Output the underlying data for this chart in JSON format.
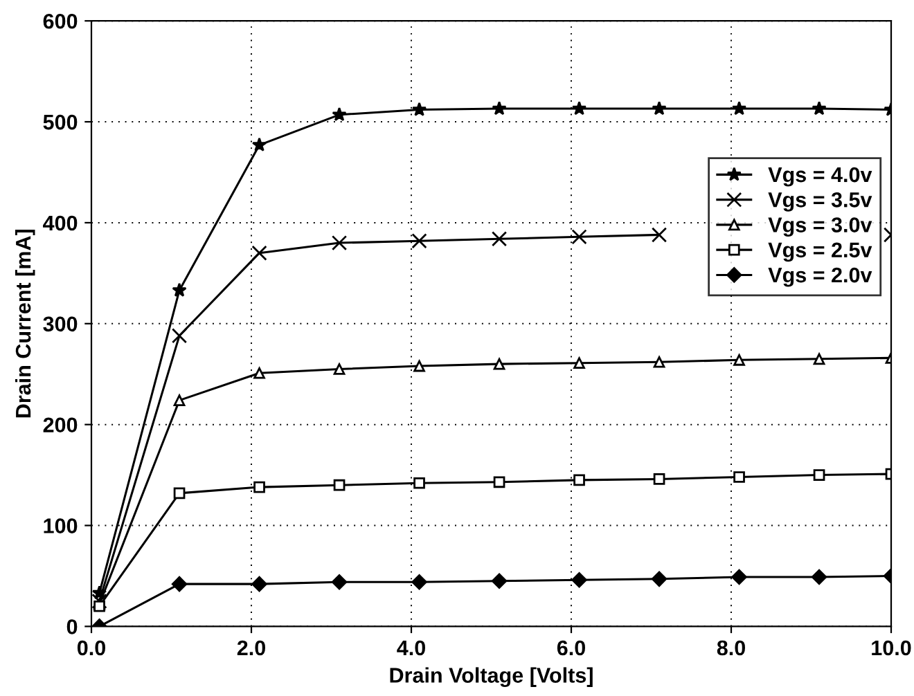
{
  "chart_data": {
    "type": "line",
    "xlabel": "Drain Voltage [Volts]",
    "ylabel": "Drain Current [mA]",
    "x": [
      0.1,
      1.1,
      2.1,
      3.1,
      4.1,
      5.1,
      6.1,
      7.1,
      8.1,
      9.1,
      10.0
    ],
    "xlim": [
      0,
      10
    ],
    "xticks": [
      {
        "value": 0,
        "label": "0.0"
      },
      {
        "value": 2,
        "label": "2.0"
      },
      {
        "value": 4,
        "label": "4.0"
      },
      {
        "value": 6,
        "label": "6.0"
      },
      {
        "value": 8,
        "label": "8.0"
      },
      {
        "value": 10,
        "label": "10.0"
      }
    ],
    "ylim": [
      0,
      600
    ],
    "yticks": [
      0,
      100,
      200,
      300,
      400,
      500,
      600
    ],
    "grid": true,
    "legend": "right",
    "line_style": "solid",
    "series": [
      {
        "name": "Vgs = 4.0v",
        "color": "#000000",
        "marker": "star",
        "values": [
          33,
          333,
          477,
          507,
          512,
          513,
          513,
          513,
          513,
          513,
          512
        ]
      },
      {
        "name": "Vgs = 3.5v",
        "color": "#000000",
        "marker": "cross",
        "values": [
          25,
          288,
          370,
          380,
          382,
          384,
          386,
          388,
          null,
          null,
          388
        ]
      },
      {
        "name": "Vgs = 3.0v",
        "color": "#000000",
        "marker": "triangle",
        "values": [
          22,
          224,
          251,
          255,
          258,
          260,
          261,
          262,
          264,
          265,
          266
        ]
      },
      {
        "name": "Vgs = 2.5v",
        "color": "#000000",
        "marker": "square",
        "values": [
          20,
          132,
          138,
          140,
          142,
          143,
          145,
          146,
          148,
          150,
          151
        ]
      },
      {
        "name": "Vgs = 2.0v",
        "color": "#000000",
        "marker": "diamond",
        "values": [
          0,
          42,
          42,
          44,
          44,
          45,
          46,
          47,
          49,
          49,
          50
        ]
      }
    ]
  }
}
